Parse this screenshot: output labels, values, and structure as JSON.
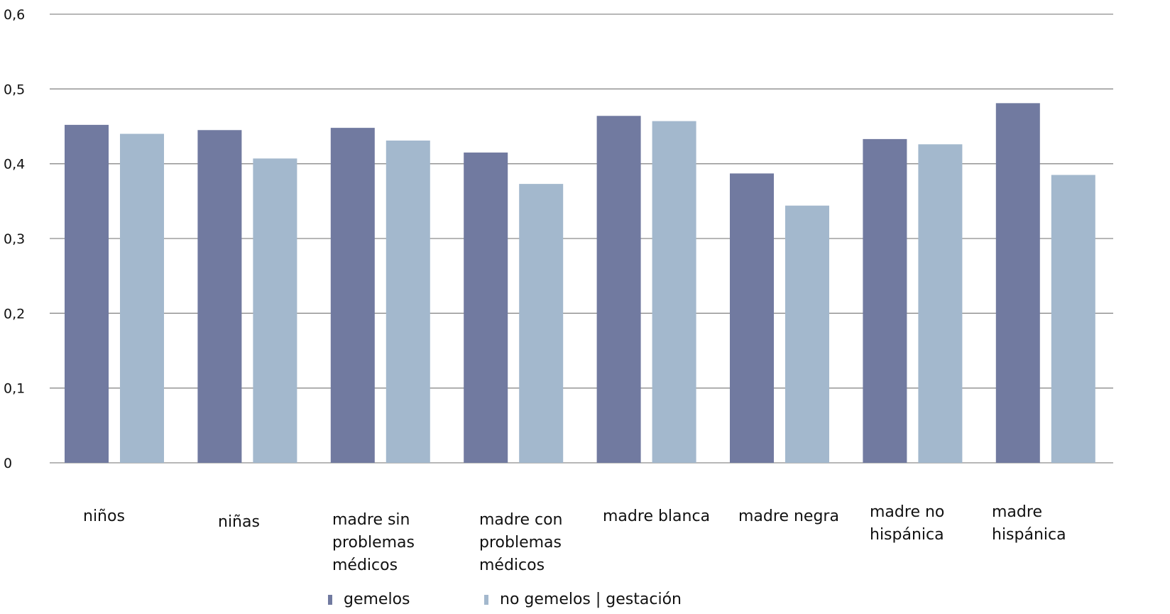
{
  "chart_data": {
    "type": "bar",
    "title": "",
    "xlabel": "",
    "ylabel": "",
    "ylim": [
      0,
      0.6
    ],
    "yticks": [
      "0",
      "0,1",
      "0,2",
      "0,3",
      "0,4",
      "0,5",
      "0,6"
    ],
    "grid": true,
    "legend_position": "bottom",
    "categories": [
      "niños",
      "niñas",
      "madre sin problemas médicos",
      "madre con problemas médicos",
      "madre blanca",
      "madre negra",
      "madre no hispánica",
      "madre hispánica"
    ],
    "series": [
      {
        "name": "gemelos",
        "color": "#717aa0",
        "values": [
          0.452,
          0.445,
          0.448,
          0.415,
          0.464,
          0.387,
          0.433,
          0.481
        ]
      },
      {
        "name": "no gemelos | gestación",
        "color": "#a3b8cd",
        "values": [
          0.44,
          0.407,
          0.431,
          0.373,
          0.457,
          0.344,
          0.426,
          0.385
        ]
      }
    ]
  }
}
